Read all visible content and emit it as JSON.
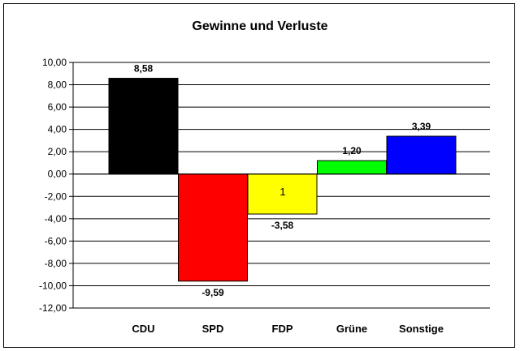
{
  "chart_data": {
    "type": "bar",
    "title": "Gewinne und Verluste",
    "xlabel": "",
    "ylabel": "",
    "categories": [
      "CDU",
      "SPD",
      "FDP",
      "Grüne",
      "Sonstige"
    ],
    "values": [
      8.58,
      -9.59,
      -3.58,
      1.2,
      3.39
    ],
    "value_labels": [
      "8,58",
      "-9,59",
      "-3,58",
      "1,20",
      "3,39"
    ],
    "bar_colors": [
      "#000000",
      "#ff0000",
      "#ffff00",
      "#00ff00",
      "#0000ff"
    ],
    "ylim": [
      -12,
      10
    ],
    "yticks": [
      10,
      8,
      6,
      4,
      2,
      0,
      -2,
      -4,
      -6,
      -8,
      -10,
      -12
    ],
    "ytick_labels": [
      "10,00",
      "8,00",
      "6,00",
      "4,00",
      "2,00",
      "0,00",
      "-2,00",
      "-4,00",
      "-6,00",
      "-8,00",
      "-10,00",
      "-12,00"
    ],
    "grid": true,
    "legend": "none",
    "annotation": "1"
  }
}
